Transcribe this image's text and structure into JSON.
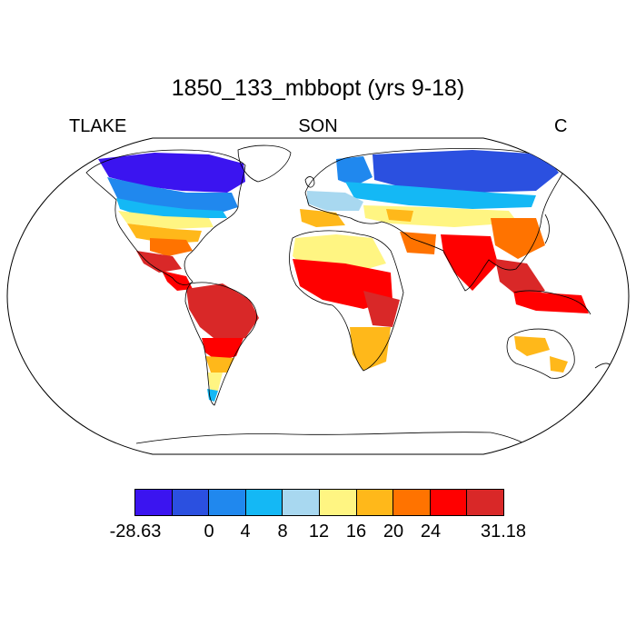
{
  "title": "1850_133_mbbopt (yrs 9-18)",
  "left_label": "TLAKE",
  "center_label": "SON",
  "right_label": "C",
  "colorbar": {
    "colors": [
      "#3b14f0",
      "#2b50e0",
      "#2088ee",
      "#14b8f5",
      "#a8d8f0",
      "#fff582",
      "#ffb81a",
      "#ff7300",
      "#ff0000",
      "#d92828"
    ],
    "labels": [
      "-28.63",
      "0",
      "4",
      "8",
      "12",
      "16",
      "20",
      "24",
      "31.18"
    ]
  }
}
